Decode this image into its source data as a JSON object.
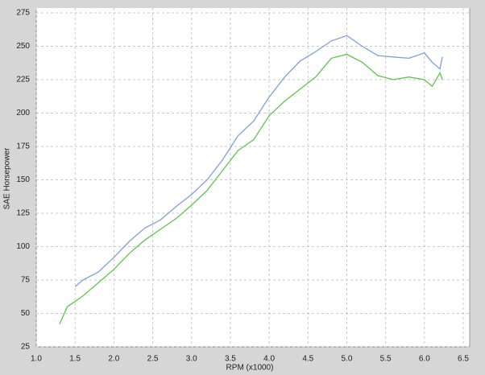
{
  "chart_data": {
    "type": "line",
    "x_label": "RPM (x1000)",
    "y_label": "SAE Horsepower",
    "xlim": [
      1,
      6.5
    ],
    "xticks": [
      {
        "value": 1,
        "label": "1.0"
      },
      1.5,
      {
        "value": 2,
        "label": "2.0"
      },
      2.5,
      {
        "value": 3,
        "label": "3.0"
      },
      3.5,
      {
        "value": 4,
        "label": "4.0"
      },
      4.5,
      {
        "value": 5,
        "label": "5.0"
      },
      5.5,
      {
        "value": 6,
        "label": "6.0"
      },
      6.5
    ],
    "ylim": [
      25,
      275
    ],
    "yticks": [
      25,
      50,
      75,
      100,
      125,
      150,
      175,
      200,
      225,
      250,
      275
    ],
    "grid": true,
    "series": [
      {
        "color": "#7f9fdc",
        "x": [
          1.5,
          1.6,
          1.8,
          2.0,
          2.2,
          2.4,
          2.6,
          2.8,
          3.0,
          3.2,
          3.4,
          3.6,
          3.8,
          4.0,
          4.2,
          4.4,
          4.6,
          4.8,
          5.0,
          5.2,
          5.4,
          5.6,
          5.8,
          6.0,
          6.1,
          6.2,
          6.23
        ],
        "values": [
          70,
          75,
          81,
          92,
          104,
          114,
          120,
          130,
          139,
          150,
          165,
          183,
          194,
          212,
          227,
          239,
          246,
          254,
          258,
          250,
          243,
          242,
          241,
          245,
          238,
          233,
          242
        ]
      },
      {
        "color": "#5cc64a",
        "x": [
          1.3,
          1.4,
          1.6,
          1.8,
          2.0,
          2.2,
          2.4,
          2.6,
          2.8,
          3.0,
          3.2,
          3.4,
          3.6,
          3.8,
          4.0,
          4.2,
          4.4,
          4.6,
          4.8,
          5.0,
          5.2,
          5.4,
          5.6,
          5.8,
          6.0,
          6.1,
          6.2,
          6.23
        ],
        "values": [
          42,
          55,
          63,
          73,
          83,
          95,
          105,
          113,
          121,
          131,
          142,
          157,
          172,
          180,
          198,
          209,
          218,
          227,
          241,
          244,
          238,
          228,
          225,
          227,
          225,
          220,
          230,
          225
        ]
      }
    ]
  }
}
